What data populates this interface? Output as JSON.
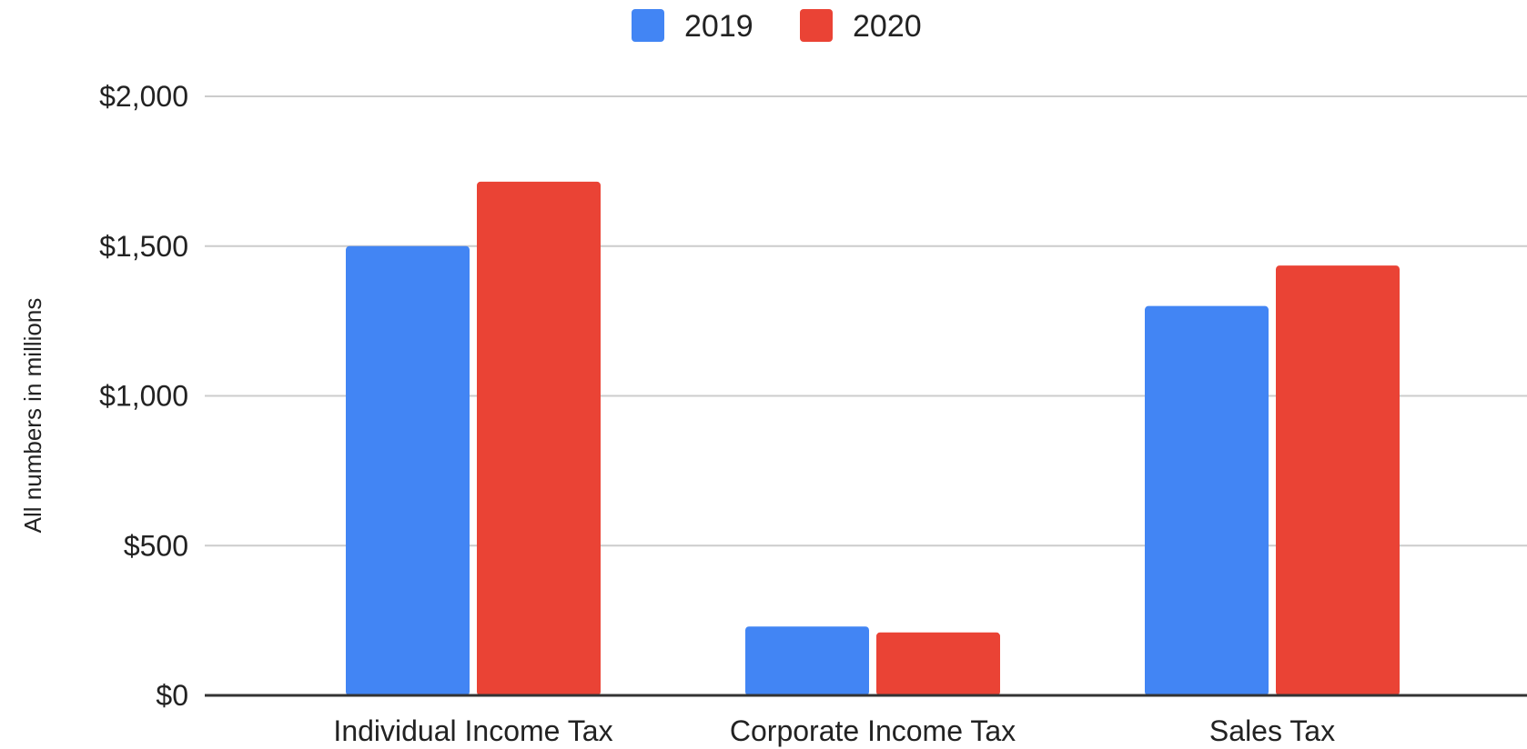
{
  "chart_data": {
    "type": "bar",
    "title": "",
    "xlabel": "",
    "ylabel": "All numbers in millions",
    "categories": [
      "Individual Income Tax",
      "Corporate Income Tax",
      "Sales Tax"
    ],
    "series": [
      {
        "name": "2019",
        "color": "#4285f4",
        "values": [
          1500,
          230,
          1300
        ]
      },
      {
        "name": "2020",
        "color": "#ea4335",
        "values": [
          1715,
          210,
          1435
        ]
      }
    ],
    "ylim": [
      0,
      2000
    ],
    "yticks": [
      0,
      500,
      1000,
      1500,
      2000
    ],
    "ytick_labels": [
      "$0",
      "$500",
      "$1,000",
      "$1,500",
      "$2,000"
    ],
    "grid": true,
    "legend_position": "top-center"
  }
}
